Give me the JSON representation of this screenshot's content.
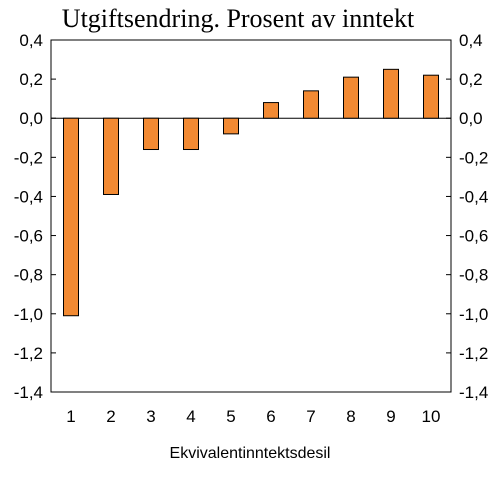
{
  "chart_data": {
    "type": "bar",
    "title": "Utgiftsendring. Prosent av inntekt",
    "xlabel": "Ekvivalentinntektsdesil",
    "ylabel": "",
    "categories": [
      "1",
      "2",
      "3",
      "4",
      "5",
      "6",
      "7",
      "8",
      "9",
      "10"
    ],
    "values": [
      -1.01,
      -0.39,
      -0.16,
      -0.16,
      -0.08,
      0.08,
      0.14,
      0.21,
      0.25,
      0.22
    ],
    "ylim": [
      -1.4,
      0.4
    ],
    "y_ticks": [
      "0,4",
      "0,2",
      "0,0",
      "-0,2",
      "-0,4",
      "-0,6",
      "-0,8",
      "-1,0",
      "-1,2",
      "-1,4"
    ],
    "y_tick_values": [
      0.4,
      0.2,
      0.0,
      -0.2,
      -0.4,
      -0.6,
      -0.8,
      -1.0,
      -1.2,
      -1.4
    ],
    "y_axis_both_sides": true,
    "grid": false,
    "legend": "none",
    "colors": {
      "bar_fill": "#F28A33",
      "bar_stroke": "#000000",
      "axis": "#000000"
    }
  }
}
